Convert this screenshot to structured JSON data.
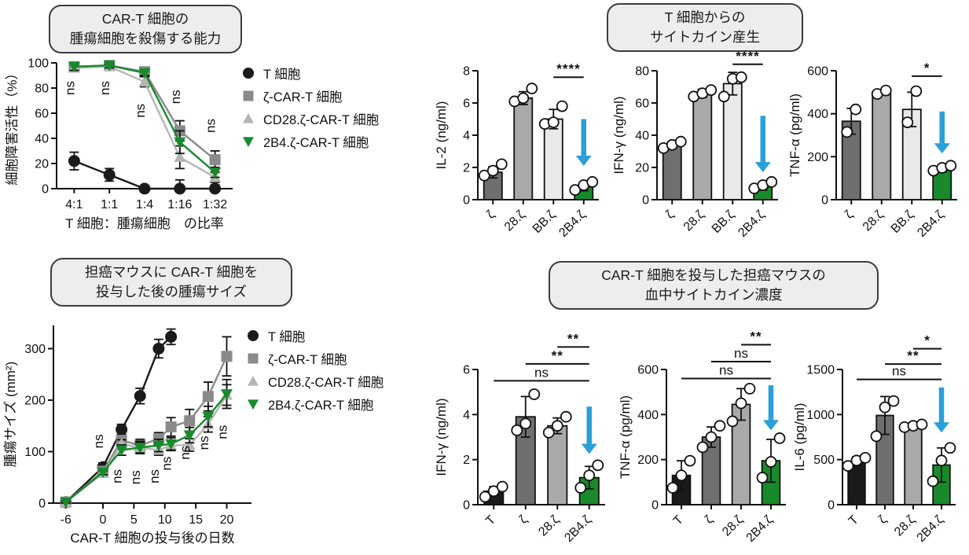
{
  "colors": {
    "black": "#1a1a1a",
    "dark_gray": "#6f6f6f",
    "mid_gray": "#a9a9a9",
    "light_gray": "#e9e9e9",
    "green": "#188a2c",
    "arrow_blue": "#2a9fd8",
    "line_gray": "#8a8a8a",
    "line_light_gray": "#b5b5b5",
    "title_bg": "#ededed",
    "title_border": "#3d3d3d"
  },
  "titles": {
    "kill_line1": "CAR-T 細胞の",
    "kill_line2": "腫瘍細胞を殺傷する能力",
    "cytokine_line1": "T 細胞からの",
    "cytokine_line2": "サイトカイン産生",
    "tumor_line1": "担癌マウスに CAR-T 細胞を",
    "tumor_line2": "投与した後の腫瘍サイズ",
    "blood_line1": "CAR-T 細胞を投与した担癌マウスの",
    "blood_line2": "血中サイトカイン濃度"
  },
  "legend": {
    "items": [
      {
        "label": "T 細胞",
        "marker": "circle",
        "color": "#1a1a1a"
      },
      {
        "label": "ζ-CAR-T 細胞",
        "marker": "square",
        "color": "#8a8a8a"
      },
      {
        "label": "CD28.ζ-CAR-T 細胞",
        "marker": "triangle-up",
        "color": "#b5b5b5"
      },
      {
        "label": "2B4.ζ-CAR-T 細胞",
        "marker": "triangle-down",
        "color": "#188a2c"
      }
    ]
  },
  "chart_data": [
    {
      "id": "cytotoxicity",
      "type": "line",
      "title": "CAR-T 細胞の腫瘍細胞を殺傷する能力",
      "xlabel": "T 細胞：腫瘍細胞　の比率",
      "ylabel": "細胞障害活性（%）",
      "categories": [
        "4:1",
        "1:1",
        "1:4",
        "1:16",
        "1:32"
      ],
      "ylim": [
        0,
        100
      ],
      "yticks": [
        0,
        20,
        40,
        60,
        80,
        100
      ],
      "grid": false,
      "legend_position": "right",
      "series": [
        {
          "name": "T 細胞",
          "marker": "circle",
          "color": "#1a1a1a",
          "values": [
            22,
            11,
            0,
            0,
            0
          ],
          "errors": [
            7,
            5,
            1,
            7,
            3
          ]
        },
        {
          "name": "ζ-CAR-T 細胞",
          "marker": "square",
          "color": "#8a8a8a",
          "values": [
            97,
            98,
            93,
            46,
            23
          ],
          "errors": [
            3,
            2,
            2,
            8,
            7
          ]
        },
        {
          "name": "CD28.ζ-CAR-T 細胞",
          "marker": "triangle-up",
          "color": "#b5b5b5",
          "values": [
            96,
            97,
            85,
            25,
            9
          ],
          "errors": [
            3,
            2,
            4,
            9,
            4
          ]
        },
        {
          "name": "2B4.ζ-CAR-T 細胞",
          "marker": "triangle-down",
          "color": "#188a2c",
          "values": [
            97,
            98,
            92,
            37,
            13
          ],
          "errors": [
            3,
            2,
            2,
            9,
            4
          ]
        }
      ],
      "annotations": [
        {
          "text": "ns",
          "x": "4:1",
          "y": 80
        },
        {
          "text": "ns",
          "x": "1:1",
          "y": 80
        },
        {
          "text": "ns",
          "x": "1:4",
          "y": 62
        },
        {
          "text": "ns",
          "x": "1:16",
          "y": 73
        },
        {
          "text": "ns",
          "x": "1:32",
          "y": 50
        }
      ]
    },
    {
      "id": "il2",
      "type": "bar",
      "title": "T 細胞からのサイトカイン産生 IL-2",
      "ylabel": "IL-2 (ng/ml)",
      "categories": [
        "ζ",
        "28.ζ",
        "BB.ζ",
        "2B4.ζ"
      ],
      "ylim": [
        0,
        8
      ],
      "yticks": [
        0,
        2,
        4,
        6,
        8
      ],
      "values": [
        1.7,
        6.3,
        5.0,
        0.8
      ],
      "errors": [
        0.35,
        0.4,
        0.6,
        0.25
      ],
      "points": [
        [
          1.5,
          1.8,
          2.2
        ],
        [
          6.1,
          6.3,
          6.9
        ],
        [
          4.7,
          4.8,
          5.8
        ],
        [
          0.6,
          0.9,
          1.1
        ]
      ],
      "bar_colors": [
        "dark_gray",
        "mid_gray",
        "light_gray",
        "green"
      ],
      "sig": [
        {
          "from": 2,
          "to": 3,
          "label": "****",
          "y": 7.6
        }
      ],
      "arrow": {
        "x": 3,
        "y_from": 5.0,
        "y_to": 2.1
      }
    },
    {
      "id": "ifng_top",
      "type": "bar",
      "title": "T 細胞からのサイトカイン産生 IFN-γ",
      "ylabel": "IFN-γ (ng/ml)",
      "categories": [
        "ζ",
        "28.ζ",
        "BB.ζ",
        "2B4.ζ"
      ],
      "ylim": [
        0,
        80
      ],
      "yticks": [
        0,
        20,
        40,
        60,
        80
      ],
      "values": [
        34,
        66,
        72,
        8
      ],
      "errors": [
        2,
        2.5,
        7,
        2
      ],
      "points": [
        [
          32,
          34,
          36
        ],
        [
          64,
          66,
          68
        ],
        [
          64,
          75,
          76
        ],
        [
          7,
          9,
          11
        ]
      ],
      "bar_colors": [
        "dark_gray",
        "mid_gray",
        "light_gray",
        "green"
      ],
      "sig": [
        {
          "from": 2,
          "to": 3,
          "label": "****",
          "y": 84
        }
      ],
      "arrow": {
        "x": 3,
        "y_from": 52,
        "y_to": 17
      }
    },
    {
      "id": "tnfa_top",
      "type": "bar",
      "title": "T 細胞からのサイトカイン産生 TNF-α",
      "ylabel": "TNF-α (pg/ml)",
      "categories": [
        "ζ",
        "28.ζ",
        "BB.ζ",
        "2B4.ζ"
      ],
      "ylim": [
        0,
        600
      ],
      "yticks": [
        0,
        200,
        400,
        600
      ],
      "values": [
        365,
        500,
        420,
        145
      ],
      "errors": [
        60,
        12,
        80,
        15
      ],
      "points": [
        [
          315,
          420
        ],
        [
          492,
          508
        ],
        [
          360,
          505
        ],
        [
          135,
          148,
          158
        ]
      ],
      "bar_colors": [
        "dark_gray",
        "mid_gray",
        "light_gray",
        "green"
      ],
      "sig": [
        {
          "from": 2,
          "to": 3,
          "label": "*",
          "y": 575
        }
      ],
      "arrow": {
        "x": 3,
        "y_from": 410,
        "y_to": 215
      }
    },
    {
      "id": "tumor",
      "type": "line",
      "title": "担癌マウスに CAR-T 細胞を投与した後の腫瘍サイズ",
      "xlabel": "CAR-T 細胞の投与後の日数",
      "ylabel": "腫瘍サイズ (mm²)",
      "xlim": [
        -8,
        24
      ],
      "xticks": [
        -6,
        0,
        5,
        10,
        15,
        20
      ],
      "ylim": [
        0,
        345
      ],
      "yticks": [
        0,
        100,
        200,
        300
      ],
      "grid": false,
      "legend_position": "right",
      "series": [
        {
          "name": "T 細胞",
          "marker": "circle",
          "color": "#1a1a1a",
          "x": [
            -6,
            0,
            3,
            6,
            9,
            11
          ],
          "values": [
            2,
            70,
            143,
            208,
            300,
            323
          ],
          "errors": [
            2,
            8,
            10,
            15,
            18,
            15
          ]
        },
        {
          "name": "ζ-CAR-T 細胞",
          "marker": "square",
          "color": "#8a8a8a",
          "x": [
            -6,
            0,
            3,
            6,
            9,
            11,
            14,
            17,
            20
          ],
          "values": [
            2,
            62,
            122,
            112,
            125,
            148,
            160,
            207,
            285
          ],
          "errors": [
            2,
            6,
            10,
            12,
            12,
            18,
            22,
            28,
            38
          ]
        },
        {
          "name": "CD28.ζ-CAR-T 細胞",
          "marker": "triangle-up",
          "color": "#b5b5b5",
          "x": [
            -6,
            0,
            3,
            6,
            9,
            11,
            14,
            17,
            20
          ],
          "values": [
            2,
            58,
            115,
            108,
            103,
            112,
            113,
            153,
            210
          ],
          "errors": [
            2,
            5,
            8,
            10,
            10,
            10,
            12,
            15,
            20
          ]
        },
        {
          "name": "2B4.ζ-CAR-T 細胞",
          "marker": "triangle-down",
          "color": "#188a2c",
          "x": [
            -6,
            0,
            3,
            6,
            9,
            11,
            14,
            17,
            20
          ],
          "values": [
            2,
            60,
            103,
            108,
            112,
            115,
            132,
            168,
            212
          ],
          "errors": [
            2,
            5,
            10,
            12,
            12,
            12,
            15,
            20,
            28
          ]
        }
      ],
      "annotations": [
        {
          "text": "ns",
          "x": 0,
          "y": 120
        },
        {
          "text": "ns",
          "x": 3,
          "y": 52
        },
        {
          "text": "ns",
          "x": 6,
          "y": 50
        },
        {
          "text": "ns",
          "x": 9,
          "y": 52
        },
        {
          "text": "ns",
          "x": 11,
          "y": 77
        },
        {
          "text": "ns",
          "x": 14,
          "y": 98
        },
        {
          "text": "ns",
          "x": 17,
          "y": 117
        },
        {
          "text": "ns",
          "x": 20,
          "y": 138
        }
      ]
    },
    {
      "id": "ifng_blood",
      "type": "bar",
      "title": "CAR-T 細胞を投与した担癌マウスの血中サイトカイン濃度 IFN-γ",
      "ylabel": "IFN-γ (ng/ml)",
      "categories": [
        "T",
        "ζ",
        "28.ζ",
        "2B4.ζ"
      ],
      "ylim": [
        0,
        6
      ],
      "yticks": [
        0,
        2,
        4,
        6
      ],
      "values": [
        0.6,
        3.9,
        3.5,
        1.2
      ],
      "errors": [
        0.2,
        0.9,
        0.35,
        0.5
      ],
      "points": [
        [
          0.35,
          0.6,
          0.8
        ],
        [
          3.3,
          3.6,
          4.9
        ],
        [
          3.2,
          3.5,
          3.9
        ],
        [
          0.75,
          1.3,
          1.75
        ]
      ],
      "bar_colors": [
        "black",
        "dark_gray",
        "mid_gray",
        "green"
      ],
      "sig": [
        {
          "from": 0,
          "to": 3,
          "label": "ns",
          "y": 5.5
        },
        {
          "from": 1,
          "to": 3,
          "label": "**",
          "y": 6.25
        },
        {
          "from": 2,
          "to": 3,
          "label": "**",
          "y": 7.0
        }
      ],
      "arrow": {
        "x": 3,
        "y_from": 4.35,
        "y_to": 2.25
      }
    },
    {
      "id": "tnfa_blood",
      "type": "bar",
      "title": "CAR-T 細胞を投与した担癌マウスの血中サイトカイン濃度 TNF-α",
      "ylabel": "TNF-α (pg/ml)",
      "categories": [
        "T",
        "ζ",
        "28.ζ",
        "2B4.ζ"
      ],
      "ylim": [
        0,
        600
      ],
      "yticks": [
        0,
        200,
        400,
        600
      ],
      "values": [
        130,
        300,
        445,
        195
      ],
      "errors": [
        65,
        45,
        70,
        95
      ],
      "points": [
        [
          75,
          130,
          195
        ],
        [
          255,
          300,
          350
        ],
        [
          370,
          450,
          515
        ],
        [
          120,
          190,
          295
        ]
      ],
      "bar_colors": [
        "black",
        "dark_gray",
        "mid_gray",
        "green"
      ],
      "sig": [
        {
          "from": 0,
          "to": 3,
          "label": "ns",
          "y": 560
        },
        {
          "from": 1,
          "to": 3,
          "label": "ns",
          "y": 635
        },
        {
          "from": 2,
          "to": 3,
          "label": "**",
          "y": 710
        }
      ],
      "arrow": {
        "x": 3,
        "y_from": 530,
        "y_to": 330
      }
    },
    {
      "id": "il6_blood",
      "type": "bar",
      "title": "CAR-T 細胞を投与した担癌マウスの血中サイトカイン濃度 IL-6",
      "ylabel": "IL-6 (pg/ml)",
      "categories": [
        "T",
        "ζ",
        "28.ζ",
        "2B4.ζ"
      ],
      "ylim": [
        0,
        1500
      ],
      "yticks": [
        0,
        500,
        1000,
        1500
      ],
      "values": [
        480,
        990,
        880,
        440
      ],
      "errors": [
        50,
        210,
        20,
        190
      ],
      "points": [
        [
          430,
          490,
          520
        ],
        [
          760,
          1080,
          1150
        ],
        [
          860,
          875,
          890
        ],
        [
          260,
          490,
          630
        ]
      ],
      "bar_colors": [
        "black",
        "dark_gray",
        "mid_gray",
        "green"
      ],
      "sig": [
        {
          "from": 0,
          "to": 3,
          "label": "ns",
          "y": 1390
        },
        {
          "from": 1,
          "to": 3,
          "label": "**",
          "y": 1560
        },
        {
          "from": 2,
          "to": 3,
          "label": "*",
          "y": 1730
        }
      ],
      "arrow": {
        "x": 3,
        "y_from": 1300,
        "y_to": 800
      }
    }
  ]
}
